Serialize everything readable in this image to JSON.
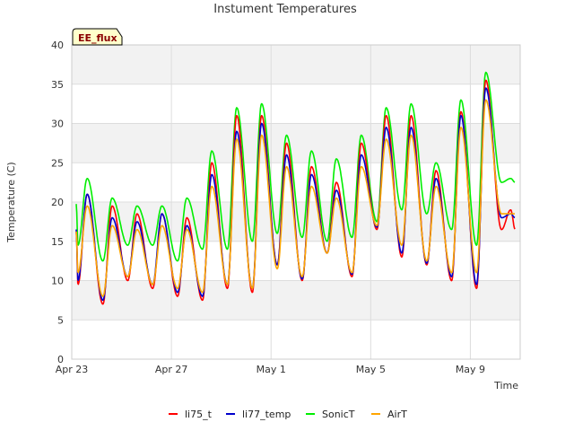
{
  "chart_data": {
    "type": "line",
    "title": "Instument Temperatures",
    "xlabel": "Time",
    "ylabel": "Temperature (C)",
    "ylim": [
      0,
      40
    ],
    "yticks": [
      0,
      5,
      10,
      15,
      20,
      25,
      30,
      35,
      40
    ],
    "xlim": [
      "2025-04-23",
      "2025-05-11"
    ],
    "xticks": [
      {
        "date": "2025-04-23",
        "label": "Apr 23"
      },
      {
        "date": "2025-04-27",
        "label": "Apr 27"
      },
      {
        "date": "2025-05-01",
        "label": "May 1"
      },
      {
        "date": "2025-05-05",
        "label": "May 5"
      },
      {
        "date": "2025-05-09",
        "label": "May 9"
      }
    ],
    "grid": true,
    "legend_position": "bottom",
    "annotation": "EE_flux",
    "colors": {
      "li75_t": "#ff0000",
      "li77_temp": "#0000cc",
      "SonicT": "#00ee00",
      "AirT": "#ffa500",
      "band": "#f2f2f2",
      "badge_fill": "#ffffcc"
    },
    "x": [
      "2025-04-23",
      "2025-04-24",
      "2025-04-25",
      "2025-04-26",
      "2025-04-27",
      "2025-04-28",
      "2025-04-29",
      "2025-04-30",
      "2025-05-01",
      "2025-05-02",
      "2025-05-03",
      "2025-05-04",
      "2025-05-05",
      "2025-05-06",
      "2025-05-07",
      "2025-05-08",
      "2025-05-09",
      "2025-05-10"
    ],
    "series": [
      {
        "name": "li75_t",
        "key": "li75_t",
        "min": [
          9.5,
          7.0,
          10.0,
          9.0,
          8.0,
          7.5,
          9.0,
          8.5,
          12.0,
          10.0,
          13.5,
          10.5,
          16.5,
          13.0,
          12.0,
          10.0,
          9.0,
          16.5
        ],
        "max": [
          21.0,
          19.5,
          18.5,
          18.5,
          18.0,
          25.0,
          31.0,
          31.0,
          27.5,
          24.5,
          22.5,
          27.5,
          31.0,
          31.0,
          24.0,
          31.5,
          35.5,
          19.0
        ]
      },
      {
        "name": "li77_temp",
        "key": "li77_temp",
        "min": [
          10.0,
          7.5,
          10.5,
          9.5,
          8.5,
          8.0,
          9.5,
          9.0,
          12.0,
          10.2,
          13.5,
          10.8,
          16.8,
          13.5,
          12.2,
          10.5,
          9.5,
          18.0
        ],
        "max": [
          21.0,
          18.0,
          17.5,
          18.5,
          17.0,
          23.5,
          29.0,
          30.0,
          26.0,
          23.5,
          21.5,
          26.0,
          29.5,
          29.5,
          23.0,
          31.0,
          34.5,
          18.5
        ]
      },
      {
        "name": "SonicT",
        "key": "SonicT",
        "min": [
          14.5,
          12.5,
          14.5,
          14.5,
          12.5,
          14.0,
          14.0,
          15.0,
          16.0,
          15.5,
          15.0,
          15.5,
          17.5,
          19.0,
          18.5,
          16.5,
          14.5,
          22.5
        ],
        "max": [
          23.0,
          20.5,
          19.5,
          19.5,
          20.5,
          26.5,
          32.0,
          32.5,
          28.5,
          26.5,
          25.5,
          28.5,
          32.0,
          32.5,
          25.0,
          33.0,
          36.5,
          23.0
        ]
      },
      {
        "name": "AirT",
        "key": "AirT",
        "min": [
          11.0,
          8.0,
          10.5,
          9.5,
          9.0,
          8.5,
          9.5,
          9.0,
          11.5,
          10.5,
          13.5,
          11.0,
          17.0,
          14.5,
          12.5,
          11.0,
          11.0,
          18.5
        ],
        "max": [
          19.5,
          17.0,
          16.5,
          17.0,
          16.5,
          22.0,
          28.0,
          28.5,
          24.5,
          22.0,
          20.5,
          24.5,
          28.0,
          28.5,
          22.0,
          29.5,
          33.0,
          18.5
        ]
      }
    ]
  }
}
